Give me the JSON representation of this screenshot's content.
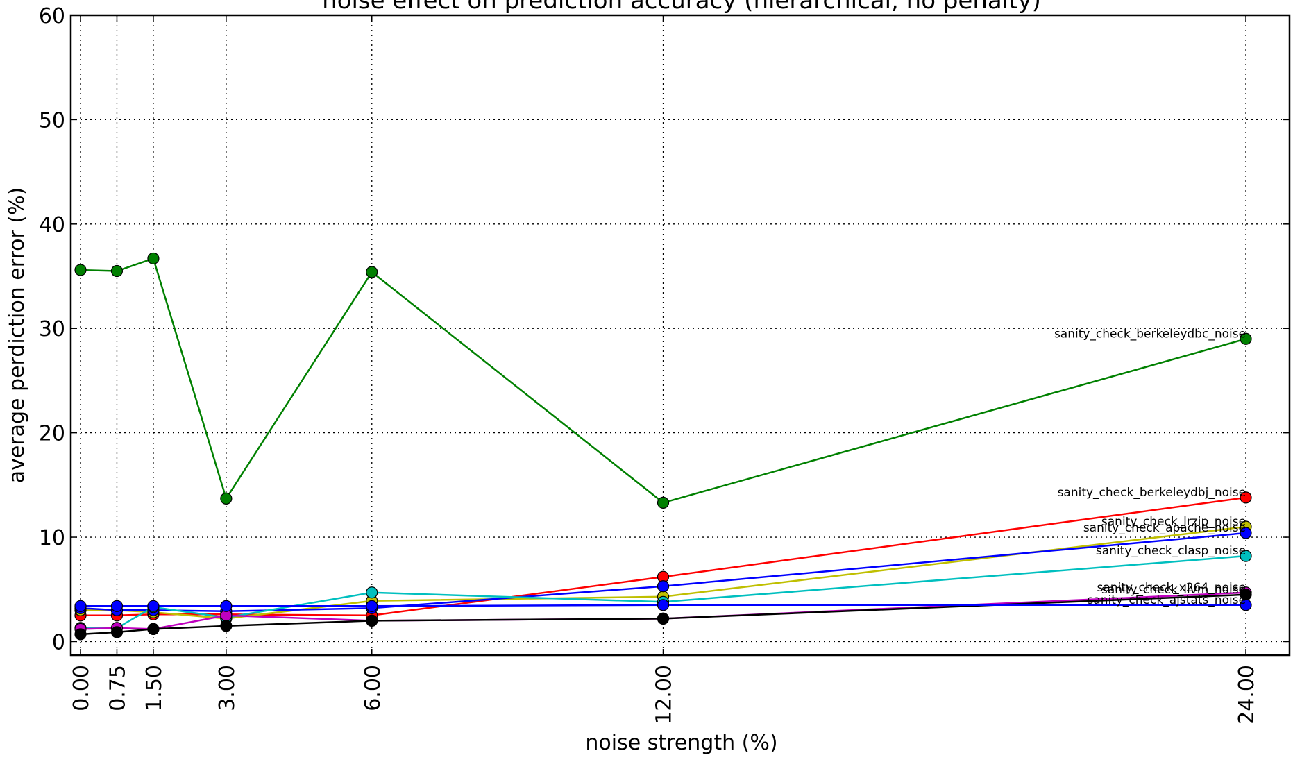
{
  "chart_data": {
    "type": "line",
    "title": "noise effect on prediction accuracy (hierarchical, no penalty)",
    "xlabel": "noise strength (%)",
    "ylabel": "average perdiction error (%)",
    "x": [
      0.0,
      0.75,
      1.5,
      3.0,
      6.0,
      12.0,
      24.0
    ],
    "x_tick_labels": [
      "0.00",
      "0.75",
      "1.50",
      "3.00",
      "6.00",
      "12.00",
      "24.00"
    ],
    "xlim": [
      -0.2,
      24.9
    ],
    "ylim": [
      -1.3,
      60
    ],
    "y_ticks": [
      0,
      10,
      20,
      30,
      40,
      50,
      60
    ],
    "grid": true,
    "marker": "circle",
    "series": [
      {
        "name": "sanity_check_berkeleydbc_noise",
        "color": "#008000",
        "values": [
          35.6,
          35.5,
          36.7,
          13.7,
          35.4,
          13.3,
          29.0
        ]
      },
      {
        "name": "sanity_check_berkeleydbj_noise",
        "color": "#ff0000",
        "values": [
          2.5,
          2.5,
          2.6,
          2.6,
          2.5,
          6.2,
          13.8
        ]
      },
      {
        "name": "sanity_check_lrzip_noise",
        "color": "#bfbf00",
        "values": [
          3.0,
          3.0,
          2.8,
          2.2,
          3.9,
          4.3,
          11.0
        ]
      },
      {
        "name": "sanity_check_apache_noise",
        "color": "#0000ff",
        "values": [
          3.2,
          3.0,
          3.0,
          2.9,
          3.2,
          5.3,
          10.4
        ]
      },
      {
        "name": "sanity_check_clasp_noise",
        "color": "#00bfbf",
        "values": [
          1.3,
          1.3,
          3.3,
          2.3,
          4.7,
          3.8,
          8.2
        ]
      },
      {
        "name": "sanity_check_x264_noise",
        "color": "#bf00bf",
        "values": [
          1.2,
          1.3,
          1.2,
          2.5,
          2.0,
          2.2,
          4.7
        ]
      },
      {
        "name": "sanity_check_llvm_noise",
        "color": "#000000",
        "values": [
          0.7,
          0.9,
          1.2,
          1.5,
          2.0,
          2.2,
          4.5
        ]
      },
      {
        "name": "sanity_check_ajstats_noise",
        "color": "#0000ff",
        "values": [
          3.4,
          3.4,
          3.4,
          3.4,
          3.4,
          3.5,
          3.5
        ]
      }
    ]
  }
}
